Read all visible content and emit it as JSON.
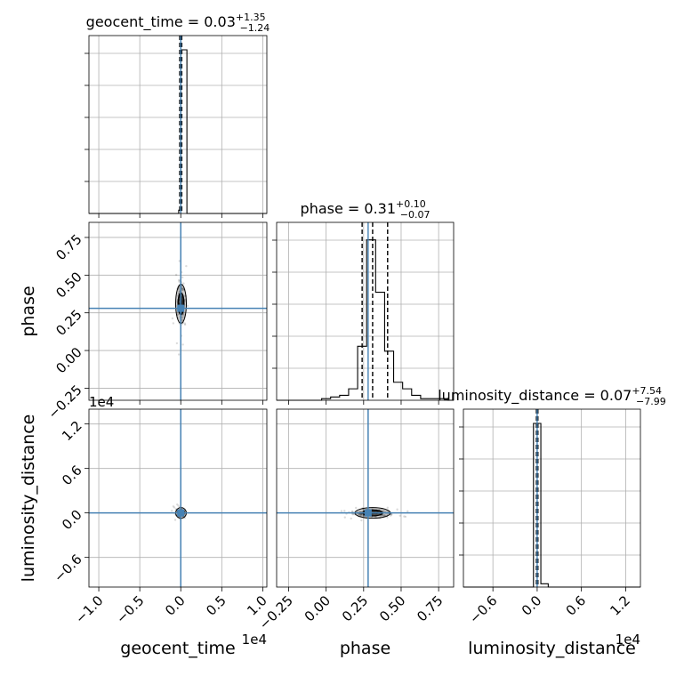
{
  "chart_data": {
    "type": "corner",
    "truth_color": "#4682b4",
    "params": [
      {
        "name": "geocent_time",
        "tick_labels": [
          "−1.0",
          "−0.5",
          "0.0",
          "0.5",
          "1.0"
        ],
        "tick_values": [
          -1.0,
          -0.5,
          0.0,
          0.5,
          1.0
        ],
        "xlim": [
          -1.12,
          1.05
        ],
        "offset_text": "1e4",
        "truth": 0.0,
        "summary_title": {
          "main": "geocent_time = 0.03",
          "sup": "+1.35",
          "sub": "−1.24"
        },
        "quantiles": [
          -0.012,
          0.0,
          0.012
        ],
        "hist": {
          "edges": [
            -0.125,
            -0.025,
            0.0,
            0.075,
            0.175
          ],
          "counts": [
            0.0,
            0.02,
            1.0,
            0.0
          ]
        }
      },
      {
        "name": "phase",
        "tick_labels": [
          "−0.25",
          "0.00",
          "0.25",
          "0.50",
          "0.75"
        ],
        "tick_values": [
          -0.25,
          0.0,
          0.25,
          0.5,
          0.75
        ],
        "xlim": [
          -0.33,
          0.85
        ],
        "truth": 0.28,
        "summary_title": {
          "main": "phase = 0.31",
          "sup": "+0.10",
          "sub": "−0.07"
        },
        "quantiles": [
          0.24,
          0.31,
          0.41
        ],
        "hist": {
          "edges": [
            -0.33,
            -0.27,
            -0.21,
            -0.15,
            -0.09,
            -0.03,
            0.03,
            0.09,
            0.15,
            0.21,
            0.27,
            0.33,
            0.39,
            0.45,
            0.51,
            0.57,
            0.63,
            0.69,
            0.75,
            0.81,
            0.85
          ],
          "counts": [
            0.0,
            0.0,
            0.0,
            0.0,
            0.0,
            0.01,
            0.02,
            0.03,
            0.07,
            0.33,
            0.98,
            0.66,
            0.3,
            0.11,
            0.07,
            0.03,
            0.01,
            0.01,
            0.01,
            0.0
          ]
        }
      },
      {
        "name": "luminosity_distance",
        "tick_labels": [
          "−0.6",
          "0.0",
          "0.6",
          "1.2"
        ],
        "tick_values": [
          -0.6,
          0.0,
          0.6,
          1.2
        ],
        "xlim": [
          -1.0,
          1.4
        ],
        "offset_text": "1e4",
        "truth": 0.0,
        "summary_title": {
          "main": "luminosity_distance = 0.07",
          "sup": "+7.54",
          "sub": "−7.99"
        },
        "quantiles": [
          -0.01,
          0.0,
          0.01
        ],
        "hist": {
          "edges": [
            -0.2,
            -0.05,
            0.05,
            0.15,
            0.3
          ],
          "counts": [
            0.0,
            1.0,
            0.02,
            0.0
          ]
        }
      }
    ],
    "lower_left_y": {
      "1": {
        "tick_labels": [
          "0.75",
          "0.50",
          "0.25",
          "0.00",
          "−0.25"
        ],
        "tick_values": [
          0.75,
          0.5,
          0.25,
          0.0,
          -0.25
        ],
        "ylim": [
          -0.33,
          0.85
        ]
      },
      "2": {
        "tick_labels": [
          "1.2",
          "0.6",
          "0.0",
          "−0.6"
        ],
        "tick_values": [
          1.2,
          0.6,
          0.0,
          -0.6
        ],
        "ylim": [
          -1.0,
          1.4
        ],
        "offset_text": "1e4"
      }
    },
    "grid": true
  }
}
